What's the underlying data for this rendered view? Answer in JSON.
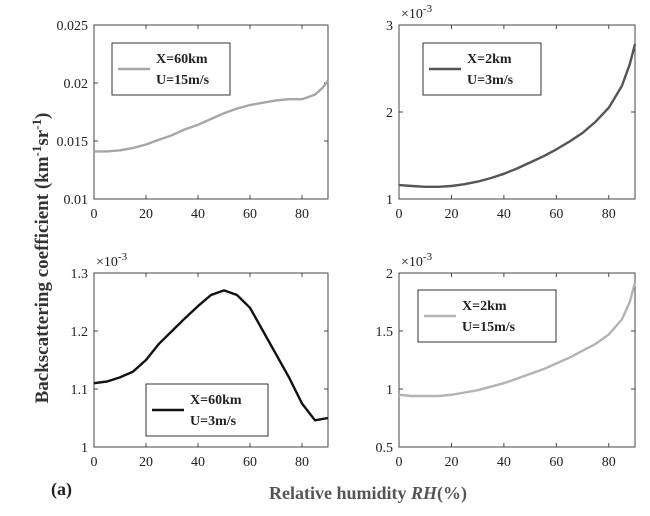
{
  "figure": {
    "ylabel_main": "Backscattering coefficient (km",
    "ylabel_sup1": "-1",
    "ylabel_mid": "sr",
    "ylabel_sup2": "-1",
    "ylabel_end": ")",
    "xlabel_main": "Relative humidity ",
    "xlabel_var": "RH",
    "xlabel_unit": "(%)",
    "panel_tag": "(a)"
  },
  "chart_data": [
    {
      "type": "line",
      "xlim": [
        0,
        90
      ],
      "ylim": [
        0.01,
        0.025
      ],
      "xticks": [
        "0",
        "20",
        "40",
        "60",
        "80"
      ],
      "yticks": [
        "0.01",
        "0.015",
        "0.02",
        "0.025"
      ],
      "exponent_base": "",
      "exponent_power": "",
      "legend_line1": "X=60km",
      "legend_line2": "U=15m/s",
      "color": "#a6a6a6",
      "x": [
        0,
        5,
        10,
        15,
        20,
        25,
        30,
        35,
        40,
        45,
        50,
        55,
        60,
        65,
        70,
        75,
        80,
        85,
        88,
        90
      ],
      "y": [
        0.0141,
        0.0141,
        0.0142,
        0.0144,
        0.0147,
        0.0151,
        0.0155,
        0.016,
        0.0164,
        0.0169,
        0.0174,
        0.0178,
        0.0181,
        0.0183,
        0.0185,
        0.0186,
        0.0186,
        0.019,
        0.0196,
        0.0202
      ]
    },
    {
      "type": "line",
      "xlim": [
        0,
        90
      ],
      "ylim": [
        1,
        3
      ],
      "xticks": [
        "0",
        "20",
        "40",
        "60",
        "80"
      ],
      "yticks": [
        "1",
        "2",
        "3"
      ],
      "exponent_base": "×10",
      "exponent_power": "-3",
      "legend_line1": "X=2km",
      "legend_line2": "U=3m/s",
      "color": "#555555",
      "x": [
        0,
        5,
        10,
        15,
        20,
        25,
        30,
        35,
        40,
        45,
        50,
        55,
        60,
        65,
        70,
        75,
        80,
        85,
        88,
        90
      ],
      "y": [
        1.16,
        1.15,
        1.14,
        1.14,
        1.15,
        1.17,
        1.2,
        1.24,
        1.29,
        1.35,
        1.42,
        1.49,
        1.57,
        1.66,
        1.76,
        1.89,
        2.05,
        2.3,
        2.55,
        2.78
      ]
    },
    {
      "type": "line",
      "xlim": [
        0,
        90
      ],
      "ylim": [
        1,
        1.3
      ],
      "xticks": [
        "0",
        "20",
        "40",
        "60",
        "80"
      ],
      "yticks": [
        "1",
        "1.1",
        "1.2",
        "1.3"
      ],
      "exponent_base": "×10",
      "exponent_power": "-3",
      "legend_line1": "X=60km",
      "legend_line2": "U=3m/s",
      "color": "#111111",
      "x": [
        0,
        5,
        10,
        15,
        20,
        25,
        30,
        35,
        40,
        45,
        50,
        55,
        60,
        65,
        70,
        75,
        80,
        85,
        90
      ],
      "y": [
        1.11,
        1.113,
        1.12,
        1.13,
        1.15,
        1.178,
        1.2,
        1.222,
        1.243,
        1.262,
        1.27,
        1.262,
        1.24,
        1.2,
        1.16,
        1.12,
        1.075,
        1.046,
        1.05
      ]
    },
    {
      "type": "line",
      "xlim": [
        0,
        90
      ],
      "ylim": [
        0.5,
        2
      ],
      "xticks": [
        "0",
        "20",
        "40",
        "60",
        "80"
      ],
      "yticks": [
        "0.5",
        "1",
        "1.5",
        "2"
      ],
      "exponent_base": "×10",
      "exponent_power": "-3",
      "legend_line1": "X=2km",
      "legend_line2": "U=15m/s",
      "color": "#b3b3b3",
      "x": [
        0,
        5,
        10,
        15,
        20,
        25,
        30,
        35,
        40,
        45,
        50,
        55,
        60,
        65,
        70,
        75,
        80,
        85,
        88,
        90
      ],
      "y": [
        0.95,
        0.94,
        0.94,
        0.94,
        0.95,
        0.97,
        0.99,
        1.02,
        1.05,
        1.09,
        1.13,
        1.17,
        1.22,
        1.27,
        1.33,
        1.39,
        1.47,
        1.6,
        1.75,
        1.92
      ]
    }
  ]
}
